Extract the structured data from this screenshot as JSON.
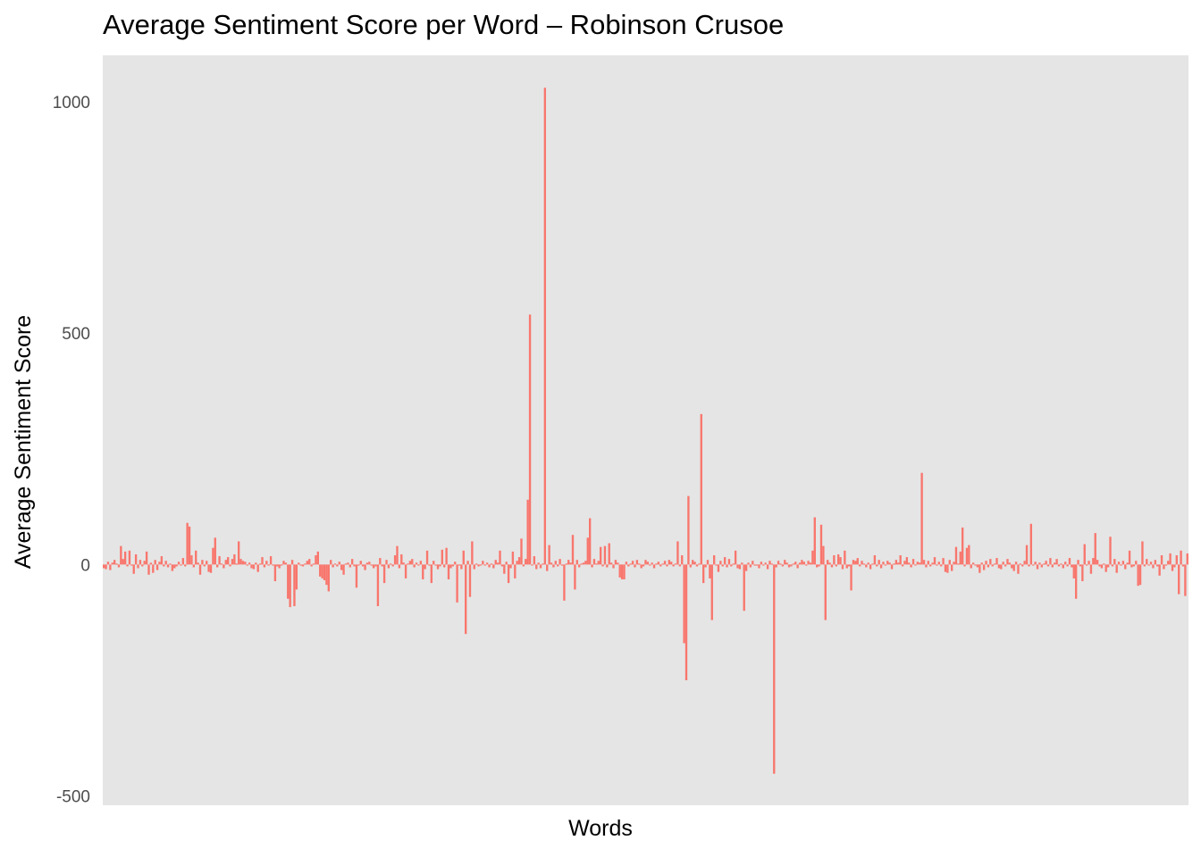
{
  "chart_data": {
    "type": "bar",
    "title": "Average Sentiment Score per Word – Robinson Crusoe",
    "xlabel": "Words",
    "ylabel": "Average Sentiment Score",
    "ylim": [
      -520,
      1100
    ],
    "yticks": [
      -500,
      0,
      500,
      1000
    ],
    "ytick_labels": [
      "-500",
      "0",
      "500",
      "1000"
    ],
    "grid": false,
    "legend": "none",
    "colors": {
      "bar": "#F8766D",
      "panel": "#E5E5E5",
      "axis_text": "#4D4D4D"
    },
    "series": [
      {
        "values": [
          -8,
          -10,
          6,
          -12,
          4,
          10,
          2,
          -6,
          40,
          12,
          28,
          -4,
          30,
          -2,
          -20,
          22,
          -8,
          10,
          -4,
          8,
          28,
          -22,
          4,
          -18,
          10,
          -12,
          6,
          18,
          -4,
          8,
          -6,
          2,
          -14,
          -8,
          -4,
          6,
          -2,
          14,
          -4,
          90,
          82,
          20,
          -6,
          30,
          4,
          -22,
          10,
          -4,
          8,
          -16,
          -18,
          36,
          58,
          -6,
          18,
          2,
          -8,
          10,
          16,
          -4,
          12,
          22,
          2,
          50,
          12,
          8,
          6,
          -2,
          4,
          -8,
          -10,
          4,
          -16,
          2,
          16,
          -6,
          8,
          -2,
          18,
          -2,
          -36,
          -4,
          -8,
          -2,
          8,
          4,
          -74,
          -92,
          10,
          -90,
          -54,
          4,
          0,
          -4,
          2,
          8,
          12,
          -4,
          2,
          20,
          28,
          -26,
          -30,
          -34,
          -44,
          -58,
          10,
          -6,
          2,
          -4,
          6,
          -12,
          -22,
          2,
          4,
          -6,
          12,
          -4,
          -50,
          -2,
          8,
          -4,
          -12,
          4,
          6,
          0,
          -8,
          -4,
          -90,
          14,
          -4,
          -40,
          10,
          -8,
          2,
          -4,
          20,
          40,
          -8,
          22,
          4,
          -30,
          2,
          8,
          12,
          -6,
          4,
          -2,
          8,
          -32,
          -10,
          30,
          -2,
          -40,
          8,
          -2,
          -10,
          -4,
          32,
          -6,
          36,
          -32,
          -8,
          -4,
          6,
          -82,
          -2,
          -10,
          30,
          -150,
          8,
          -70,
          50,
          -10,
          2,
          -4,
          0,
          8,
          -2,
          4,
          -6,
          2,
          -8,
          10,
          4,
          30,
          -4,
          -20,
          6,
          -40,
          -8,
          28,
          -30,
          8,
          16,
          56,
          -4,
          12,
          140,
          540,
          -2,
          18,
          -10,
          4,
          -8,
          2,
          1030,
          -14,
          42,
          4,
          -6,
          8,
          -4,
          12,
          -2,
          -78,
          2,
          10,
          4,
          64,
          -54,
          10,
          -6,
          2,
          4,
          8,
          58,
          100,
          -6,
          12,
          2,
          8,
          38,
          -4,
          40,
          -6,
          46,
          4,
          -8,
          10,
          4,
          -28,
          -32,
          -32,
          6,
          -4,
          2,
          8,
          -6,
          10,
          2,
          -8,
          -4,
          10,
          6,
          -2,
          4,
          -8,
          2,
          6,
          -4,
          2,
          8,
          -4,
          10,
          6,
          -4,
          2,
          50,
          -4,
          20,
          -170,
          -250,
          148,
          -6,
          10,
          6,
          -4,
          2,
          325,
          -40,
          -6,
          10,
          -30,
          -120,
          20,
          -2,
          -16,
          8,
          -4,
          16,
          -6,
          12,
          -4,
          2,
          30,
          -8,
          -10,
          4,
          -100,
          -14,
          4,
          -6,
          8,
          -2,
          -2,
          -8,
          6,
          -2,
          4,
          -10,
          8,
          2,
          -452,
          -6,
          8,
          2,
          -4,
          10,
          4,
          -6,
          -4,
          2,
          6,
          -8,
          4,
          10,
          6,
          -2,
          8,
          4,
          30,
          102,
          -6,
          -4,
          86,
          40,
          -120,
          10,
          4,
          -6,
          20,
          -4,
          22,
          16,
          -10,
          30,
          -8,
          -4,
          -56,
          10,
          8,
          14,
          -4,
          8,
          2,
          -6,
          4,
          -10,
          2,
          20,
          -4,
          10,
          -8,
          6,
          -2,
          8,
          4,
          -10,
          2,
          10,
          4,
          20,
          -4,
          8,
          16,
          4,
          -6,
          12,
          -2,
          6,
          4,
          198,
          10,
          -6,
          8,
          -4,
          4,
          16,
          -2,
          6,
          -4,
          14,
          -16,
          -18,
          10,
          -14,
          6,
          38,
          2,
          28,
          80,
          -4,
          36,
          42,
          -8,
          4,
          -2,
          -6,
          -18,
          4,
          -12,
          8,
          -6,
          12,
          -4,
          2,
          14,
          -8,
          -10,
          6,
          -4,
          12,
          4,
          -8,
          -14,
          6,
          -20,
          2,
          -4,
          8,
          42,
          -4,
          88,
          -2,
          6,
          -10,
          4,
          -6,
          2,
          8,
          -4,
          14,
          -6,
          4,
          12,
          -4,
          2,
          -8,
          6,
          -4,
          14,
          -6,
          -30,
          -74,
          10,
          -4,
          -36,
          44,
          -2,
          8,
          -20,
          14,
          68,
          10,
          -4,
          -8,
          2,
          -16,
          -6,
          60,
          -4,
          12,
          -18,
          6,
          -2,
          8,
          -10,
          4,
          30,
          -6,
          -4,
          8,
          -46,
          -44,
          50,
          -4,
          12,
          -2,
          6,
          -8,
          10,
          -4,
          -24,
          20,
          -10,
          -2,
          8,
          24,
          -14,
          -6,
          20,
          -64,
          30,
          -4,
          -68,
          24
        ]
      }
    ]
  }
}
